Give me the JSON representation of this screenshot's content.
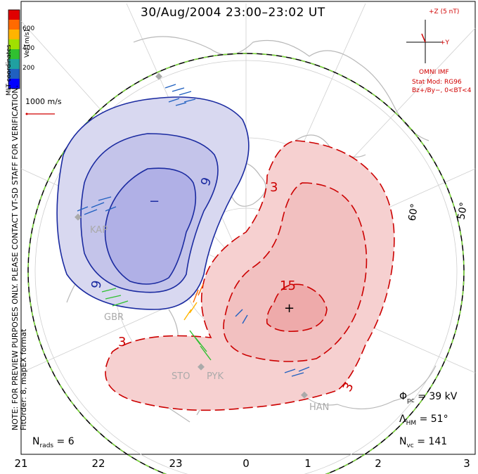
{
  "title": "30/Aug/2004 23:00–23:02 UT",
  "note": {
    "line1": "NOTE: FOR PREVIEW PURPOSES ONLY. PLEASE CONTACT VT-SD STAFF FOR VERIFICATION.",
    "line2": "FitOrder: 8, mapEX format"
  },
  "coordinates": "MLT coordinates",
  "colorbar": {
    "title": "Vel [m/s]",
    "ticks": [
      "600",
      "400",
      "200"
    ],
    "colors": [
      "#e00000",
      "#ff6a00",
      "#ffb400",
      "#a0e000",
      "#30c030",
      "#20a0a0",
      "#2060c0",
      "#0000ff"
    ]
  },
  "velocity_scale": "1000 m/s",
  "imf": {
    "z_label": "+Z (5 nT)",
    "y_label": "+Y",
    "source": "OMNI IMF",
    "model_line1": "Stat Mod: RG96",
    "model_line2": "Bz+/By−, 0<BT<4"
  },
  "latitude_labels": [
    "60°",
    "50°"
  ],
  "mlt_ticks": [
    "21",
    "22",
    "23",
    "0",
    "1",
    "2",
    "3"
  ],
  "radars": [
    "KAP",
    "GBR",
    "STO",
    "PYK",
    "HAN"
  ],
  "contour_labels": {
    "negative": [
      "−",
      "9",
      "9"
    ],
    "positive": [
      "3",
      "15",
      "+",
      "3",
      "3"
    ]
  },
  "stats": {
    "phi_pc": "39 kV",
    "lambda_hm": "51°",
    "n_vc": "141",
    "n_rads": "6"
  },
  "colors": {
    "negative_line": "#1a2aa0",
    "negative_fill": "#c8c8ec",
    "positive_line": "#cc0000",
    "positive_fill": "#f6c8c8",
    "coast": "#b8b8b8",
    "imf": "#d00000"
  }
}
